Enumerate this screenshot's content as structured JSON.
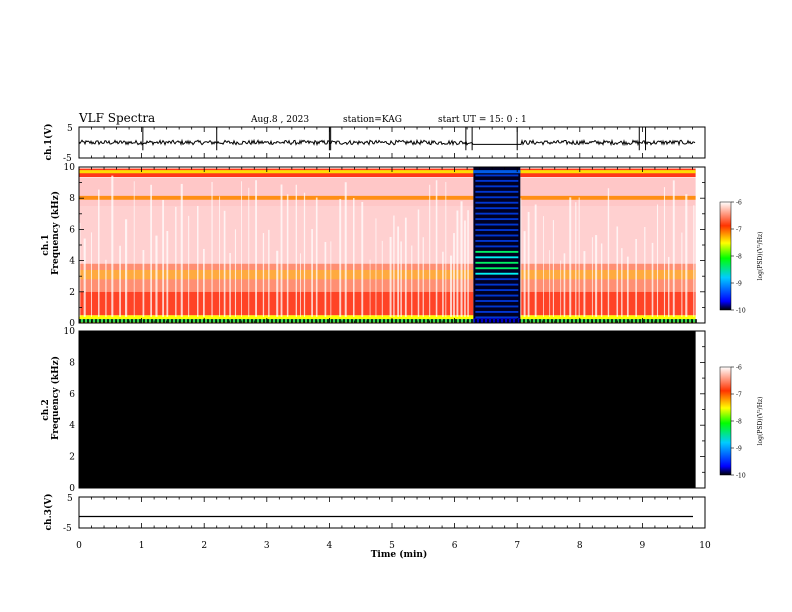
{
  "header": {
    "title": "VLF Spectra",
    "date": "Aug.8 , 2023",
    "station": "station=KAG",
    "start": "start UT = 15: 0 : 1"
  },
  "chart_data": [
    {
      "type": "line",
      "panel": "ch1-waveform",
      "ylabel": "ch.1(V)",
      "ylim": [
        -5,
        5
      ],
      "yticks": [
        "5",
        "-5"
      ],
      "baseline": 0,
      "gap_min": [
        6.3,
        7.05
      ],
      "spikes_min": [
        1.02,
        2.2,
        4.0,
        4.02,
        6.18,
        6.28,
        7.0,
        8.95,
        9.05
      ]
    },
    {
      "type": "heatmap",
      "panel": "ch1-spectrogram",
      "ylabel": "ch.1 Frequency (kHz)",
      "ylim": [
        0,
        10
      ],
      "yticks": [
        "0",
        "2",
        "4",
        "6",
        "8",
        "10"
      ],
      "xlim": [
        0,
        10
      ],
      "data_end_min": 9.85,
      "quiet_interval_min": [
        6.3,
        7.05
      ],
      "emission_bands_khz": [
        {
          "band": [
            0,
            2
          ],
          "level": -7.2
        },
        {
          "band": [
            2,
            4
          ],
          "level": -7.4
        },
        {
          "band": [
            7.9,
            8.1
          ],
          "level": -7.6
        },
        {
          "band": [
            9.4,
            9.9
          ],
          "level": -7.3
        }
      ],
      "colorbar": {
        "label": "log(PSD)(V²/Hz)",
        "range": [
          -10,
          -6
        ],
        "ticks": [
          "-6",
          "-7",
          "-8",
          "-9",
          "-10"
        ]
      }
    },
    {
      "type": "heatmap",
      "panel": "ch2-spectrogram",
      "ylabel": "ch.2 Frequency (kHz)",
      "ylim": [
        0,
        10
      ],
      "yticks": [
        "0",
        "2",
        "4",
        "6",
        "8",
        "10"
      ],
      "xlim": [
        0,
        10
      ],
      "data_end_min": 9.85,
      "level": -10,
      "colorbar": {
        "label": "log(PSD)(V²/Hz)",
        "range": [
          -10,
          -6
        ],
        "ticks": [
          "-6",
          "-7",
          "-8",
          "-9",
          "-10"
        ]
      }
    },
    {
      "type": "line",
      "panel": "ch3-waveform",
      "ylabel": "ch.3(V)",
      "ylim": [
        -5,
        5
      ],
      "yticks": [
        "5",
        "-5"
      ],
      "constant_value": -1.3
    }
  ],
  "xaxis": {
    "label": "Time (min)",
    "range": [
      0,
      10
    ],
    "ticks": [
      "0",
      "1",
      "2",
      "3",
      "4",
      "5",
      "6",
      "7",
      "8",
      "9",
      "10"
    ]
  }
}
